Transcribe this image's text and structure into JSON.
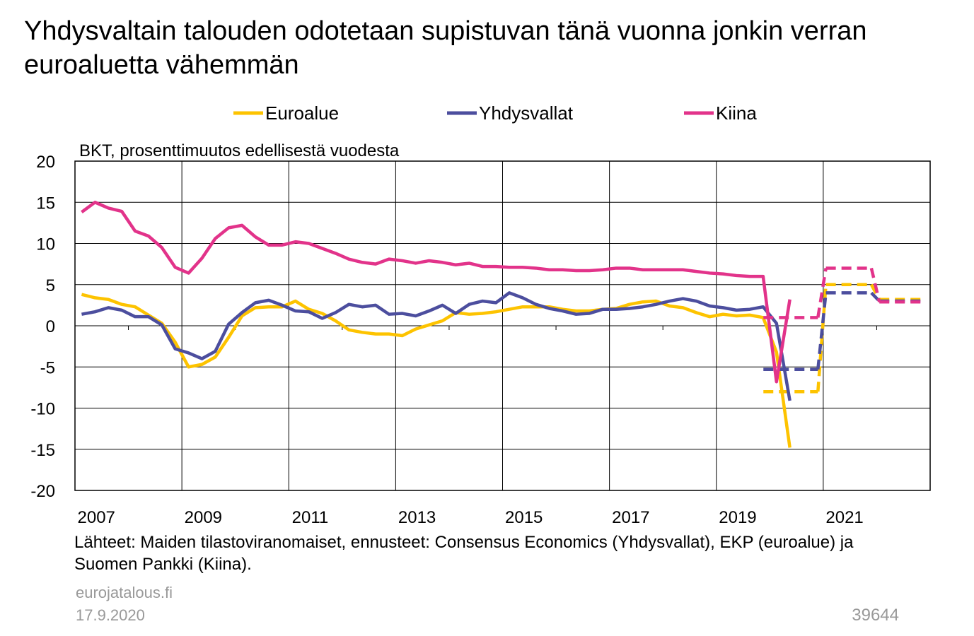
{
  "chart_data": {
    "type": "line",
    "title": "Yhdysvaltain talouden odotetaan supistuvan tänä vuonna jonkin verran euroaluetta vähemmän",
    "y_axis_label": "BKT, prosenttimuutos edellisestä vuodesta",
    "x": [
      2007.125,
      2007.375,
      2007.625,
      2007.875,
      2008.125,
      2008.375,
      2008.625,
      2008.875,
      2009.125,
      2009.375,
      2009.625,
      2009.875,
      2010.125,
      2010.375,
      2010.625,
      2010.875,
      2011.125,
      2011.375,
      2011.625,
      2011.875,
      2012.125,
      2012.375,
      2012.625,
      2012.875,
      2013.125,
      2013.375,
      2013.625,
      2013.875,
      2014.125,
      2014.375,
      2014.625,
      2014.875,
      2015.125,
      2015.375,
      2015.625,
      2015.875,
      2016.125,
      2016.375,
      2016.625,
      2016.875,
      2017.125,
      2017.375,
      2017.625,
      2017.875,
      2018.125,
      2018.375,
      2018.625,
      2018.875,
      2019.125,
      2019.375,
      2019.625,
      2019.875,
      2020.125,
      2020.375
    ],
    "forecast_x": [
      2020,
      2021,
      2022
    ],
    "series": [
      {
        "name": "Euroalue",
        "color": "#fdc300",
        "values": [
          3.8,
          3.4,
          3.2,
          2.6,
          2.3,
          1.3,
          0.3,
          -2.0,
          -5.0,
          -4.7,
          -3.8,
          -1.4,
          1.2,
          2.2,
          2.3,
          2.3,
          3.0,
          2.0,
          1.5,
          0.6,
          -0.5,
          -0.8,
          -1.0,
          -1.0,
          -1.2,
          -0.4,
          0.1,
          0.6,
          1.6,
          1.4,
          1.5,
          1.7,
          2.0,
          2.3,
          2.3,
          2.3,
          2.0,
          1.8,
          1.8,
          2.0,
          2.1,
          2.6,
          2.9,
          3.0,
          2.4,
          2.2,
          1.6,
          1.1,
          1.4,
          1.2,
          1.3,
          1.0,
          -3.2,
          -14.8
        ],
        "forecast_values": [
          -8.0,
          5.0,
          3.2
        ]
      },
      {
        "name": "Yhdysvallat",
        "color": "#4c4e9e",
        "values": [
          1.4,
          1.7,
          2.2,
          1.9,
          1.1,
          1.1,
          0.1,
          -2.8,
          -3.3,
          -4.0,
          -3.1,
          0.2,
          1.6,
          2.8,
          3.1,
          2.5,
          1.8,
          1.7,
          0.9,
          1.6,
          2.6,
          2.3,
          2.5,
          1.4,
          1.5,
          1.2,
          1.8,
          2.5,
          1.5,
          2.6,
          3.0,
          2.8,
          4.0,
          3.4,
          2.6,
          2.1,
          1.8,
          1.4,
          1.5,
          2.0,
          2.0,
          2.1,
          2.3,
          2.6,
          3.0,
          3.3,
          3.0,
          2.4,
          2.2,
          1.9,
          2.0,
          2.3,
          0.3,
          -9.1
        ],
        "forecast_values": [
          -5.3,
          4.0,
          3.0
        ]
      },
      {
        "name": "Kiina",
        "color": "#e2338a",
        "values": [
          13.8,
          15.0,
          14.3,
          13.9,
          11.5,
          10.9,
          9.5,
          7.1,
          6.4,
          8.2,
          10.6,
          11.9,
          12.2,
          10.8,
          9.8,
          9.8,
          10.2,
          10.0,
          9.4,
          8.8,
          8.1,
          7.7,
          7.5,
          8.1,
          7.9,
          7.6,
          7.9,
          7.7,
          7.4,
          7.6,
          7.2,
          7.2,
          7.1,
          7.1,
          7.0,
          6.8,
          6.8,
          6.7,
          6.7,
          6.8,
          7.0,
          7.0,
          6.8,
          6.8,
          6.8,
          6.8,
          6.6,
          6.4,
          6.3,
          6.1,
          6.0,
          6.0,
          -6.8,
          3.2
        ],
        "forecast_values": [
          1.0,
          7.0,
          2.9
        ]
      }
    ],
    "xlim": [
      2007,
      2023
    ],
    "xticks": [
      2007,
      2009,
      2011,
      2013,
      2015,
      2017,
      2019,
      2021
    ],
    "x_minor_ticks": [
      2008,
      2010,
      2012,
      2014,
      2016,
      2018,
      2020,
      2022
    ],
    "ylim": [
      -20,
      20
    ],
    "yticks": [
      -20,
      -15,
      -10,
      -5,
      0,
      5,
      10,
      15,
      20
    ],
    "grid": true,
    "legend": "top",
    "source": "Lähteet: Maiden tilastoviranomaiset, ennusteet: Consensus Economics (Yhdysvallat), EKP (euroalue) ja Suomen Pankki (Kiina).",
    "website": "eurojatalous.fi",
    "date": "17.9.2020",
    "chart_id": "39644"
  }
}
